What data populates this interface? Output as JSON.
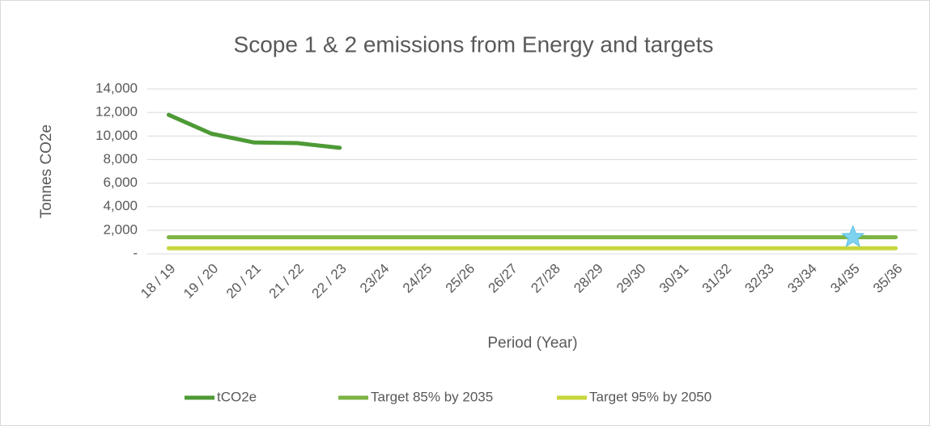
{
  "chart_data": {
    "type": "line",
    "title": "Scope 1 & 2 emissions from Energy and targets",
    "x_label": "Period (Year)",
    "y_label": "Tonnes CO2e",
    "categories": [
      "18 / 19",
      "19 / 20",
      "20 / 21",
      "21 / 22",
      "22 / 23",
      "23/24",
      "24/25",
      "25/26",
      "26/27",
      "27/28",
      "28/29",
      "29/30",
      "30/31",
      "31/32",
      "32/33",
      "33/34",
      "34/35",
      "35/36"
    ],
    "series": [
      {
        "name": "tCO2e",
        "color": "#4e9a36",
        "values": [
          11800,
          10200,
          9450,
          9400,
          9000,
          null,
          null,
          null,
          null,
          null,
          null,
          null,
          null,
          null,
          null,
          null,
          null,
          null
        ]
      },
      {
        "name": "Target 85% by 2035",
        "color": "#7db444",
        "values": [
          1410,
          1410,
          1410,
          1410,
          1410,
          1410,
          1410,
          1410,
          1410,
          1410,
          1410,
          1410,
          1410,
          1410,
          1410,
          1410,
          1410,
          1410
        ]
      },
      {
        "name": "Target 95% by 2050",
        "color": "#c7d63a",
        "values": [
          470,
          470,
          470,
          470,
          470,
          470,
          470,
          470,
          470,
          470,
          470,
          470,
          470,
          470,
          470,
          470,
          470,
          470
        ]
      }
    ],
    "trend": {
      "color": "#4e9a36",
      "star_color": "#7fd3f0",
      "values": [
        null,
        null,
        null,
        null,
        9000,
        null,
        null,
        null,
        null,
        null,
        null,
        null,
        null,
        null,
        null,
        null,
        1410,
        null
      ]
    },
    "ylim": [
      0,
      14000
    ],
    "yticks": [
      {
        "value": 0,
        "label": "-"
      },
      {
        "value": 2000,
        "label": "2,000"
      },
      {
        "value": 4000,
        "label": "4,000"
      },
      {
        "value": 6000,
        "label": "6,000"
      },
      {
        "value": 8000,
        "label": "8,000"
      },
      {
        "value": 10000,
        "label": "10,000"
      },
      {
        "value": 12000,
        "label": "12,000"
      },
      {
        "value": 14000,
        "label": "14,000"
      }
    ],
    "grid": true,
    "legend": "bottom"
  }
}
